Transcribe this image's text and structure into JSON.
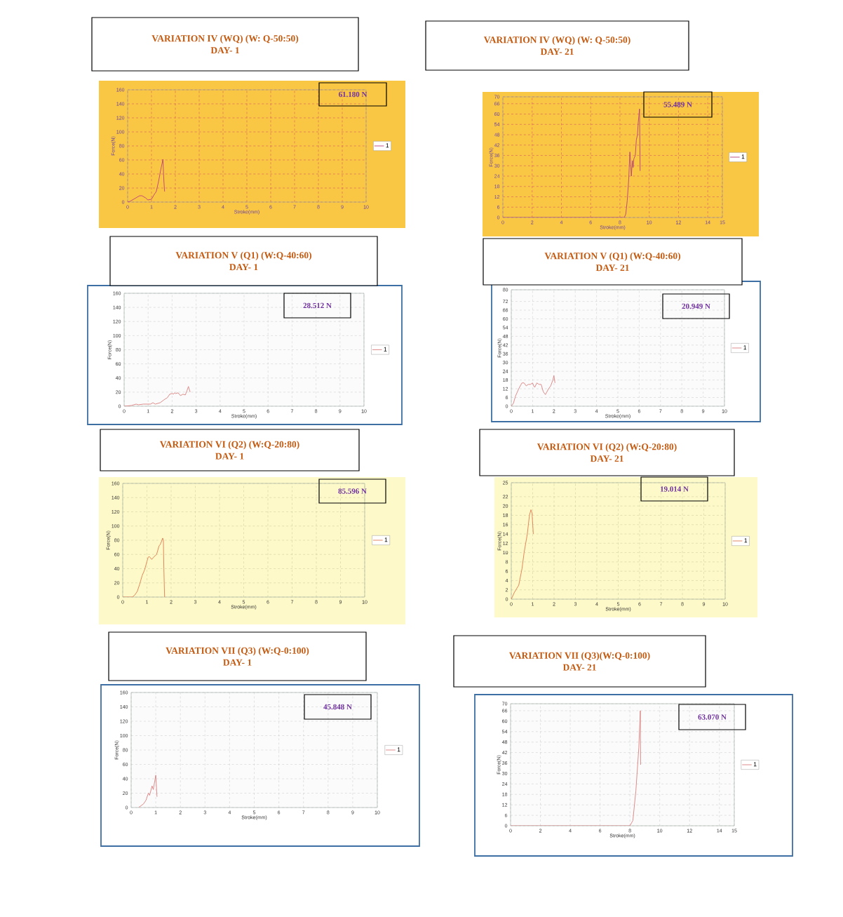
{
  "chart_data": [
    {
      "type": "line",
      "title": "VARIATION IV (WQ) (W: Q-50:50)",
      "subtitle": "DAY- 1",
      "xlabel": "Stroke(mm)",
      "ylabel": "Force(N)",
      "annotations": [
        "61.180 N"
      ],
      "xlim": [
        0,
        10
      ],
      "ylim": [
        0,
        160
      ],
      "xticks": [
        0,
        1,
        2,
        3,
        4,
        5,
        6,
        7,
        8,
        9,
        10
      ],
      "yticks": [
        0,
        20,
        40,
        60,
        80,
        100,
        120,
        140,
        160
      ],
      "grid": true,
      "legend": "right",
      "series": [
        {
          "name": "1",
          "color": "#c0407a",
          "x": [
            0,
            0.1,
            0.3,
            0.5,
            0.6,
            0.75,
            0.85,
            1.0,
            1.1,
            1.2,
            1.3,
            1.4,
            1.48,
            1.5,
            1.52,
            1.55
          ],
          "values": [
            0,
            1,
            5,
            9,
            9,
            6,
            3,
            4,
            10,
            15,
            30,
            48,
            61,
            45,
            30,
            15
          ]
        }
      ]
    },
    {
      "type": "line",
      "title": "VARIATION IV (WQ) (W: Q-50:50)",
      "subtitle": "DAY- 21",
      "xlabel": "Stroke(mm)",
      "ylabel": "Force(N)",
      "annotations": [
        "55.489 N"
      ],
      "xlim": [
        0,
        15
      ],
      "ylim": [
        0,
        70
      ],
      "xticks": [
        0,
        2,
        4,
        6,
        8,
        10,
        12,
        14,
        15
      ],
      "yticks": [
        0,
        6,
        12,
        18,
        24,
        30,
        36,
        42,
        48,
        54,
        60,
        66,
        70
      ],
      "grid": true,
      "legend": "right",
      "series": [
        {
          "name": "1",
          "color": "#b8407a",
          "x": [
            0,
            8.3,
            8.4,
            8.5,
            8.6,
            8.68,
            8.78,
            8.85,
            8.9,
            8.95,
            9.05,
            9.12,
            9.2,
            9.25,
            9.34,
            9.38
          ],
          "values": [
            0,
            0,
            2,
            10,
            22,
            38,
            24,
            33,
            29,
            34,
            36,
            45,
            48,
            55,
            63,
            27
          ]
        }
      ]
    },
    {
      "type": "line",
      "title": "VARIATION V (Q1) (W:Q-40:60)",
      "subtitle": "DAY- 1",
      "xlabel": "Stroke(mm)",
      "ylabel": "Force(N)",
      "annotations": [
        "28.512 N"
      ],
      "xlim": [
        0,
        10
      ],
      "ylim": [
        0,
        160
      ],
      "xticks": [
        0,
        1,
        2,
        3,
        4,
        5,
        6,
        7,
        8,
        9,
        10
      ],
      "yticks": [
        0,
        20,
        40,
        60,
        80,
        100,
        120,
        140,
        160
      ],
      "grid": true,
      "legend": "right",
      "series": [
        {
          "name": "1",
          "color": "#d9807f",
          "x": [
            0,
            0.3,
            0.5,
            0.6,
            0.8,
            1.0,
            1.1,
            1.2,
            1.3,
            1.5,
            1.7,
            1.8,
            1.9,
            2.0,
            2.05,
            2.1,
            2.15,
            2.25,
            2.35,
            2.45,
            2.55,
            2.62,
            2.68,
            2.75
          ],
          "values": [
            0,
            1,
            3,
            2,
            3,
            3,
            3,
            5,
            3,
            5,
            10,
            12,
            17,
            18,
            17,
            19,
            18,
            19,
            15,
            17,
            16,
            22,
            28,
            20
          ]
        }
      ]
    },
    {
      "type": "line",
      "title": "VARIATION V (Q1) (W:Q-40:60)",
      "subtitle": "DAY- 21",
      "xlabel": "Stroke(mm)",
      "ylabel": "Force(N)",
      "annotations": [
        "20.949 N"
      ],
      "xlim": [
        0,
        10
      ],
      "ylim": [
        0,
        80
      ],
      "xticks": [
        0,
        1,
        2,
        3,
        4,
        5,
        6,
        7,
        8,
        9,
        10
      ],
      "yticks": [
        0,
        6,
        12,
        18,
        24,
        30,
        36,
        42,
        48,
        54,
        60,
        66,
        72,
        80
      ],
      "grid": true,
      "legend": "right",
      "series": [
        {
          "name": "1",
          "color": "#d9807f",
          "x": [
            0,
            0.1,
            0.2,
            0.35,
            0.5,
            0.6,
            0.65,
            0.7,
            0.8,
            0.9,
            1.0,
            1.05,
            1.1,
            1.2,
            1.3,
            1.4,
            1.5,
            1.6,
            1.75,
            1.85,
            1.95,
            2.0,
            2.05
          ],
          "values": [
            0,
            2,
            7,
            12,
            16,
            16,
            15,
            14,
            15,
            15,
            16,
            14,
            13,
            16,
            15,
            15,
            10,
            8,
            12,
            14,
            18,
            21,
            16
          ]
        }
      ]
    },
    {
      "type": "line",
      "title": "VARIATION VI (Q2) (W:Q-20:80)",
      "subtitle": "DAY- 1",
      "xlabel": "Stroke(mm)",
      "ylabel": "Force(N)",
      "annotations": [
        "85.596 N"
      ],
      "xlim": [
        0,
        10
      ],
      "ylim": [
        0,
        160
      ],
      "xticks": [
        0,
        1,
        2,
        3,
        4,
        5,
        6,
        7,
        8,
        9,
        10
      ],
      "yticks": [
        0,
        20,
        40,
        60,
        80,
        100,
        120,
        140,
        160
      ],
      "grid": true,
      "legend": "right",
      "series": [
        {
          "name": "1",
          "color": "#e07a50",
          "x": [
            0,
            0.4,
            0.5,
            0.6,
            0.7,
            0.8,
            0.9,
            1.0,
            1.05,
            1.1,
            1.2,
            1.3,
            1.4,
            1.5,
            1.55,
            1.6,
            1.65,
            1.68,
            1.7,
            1.73
          ],
          "values": [
            0,
            0,
            3,
            8,
            18,
            30,
            38,
            50,
            56,
            57,
            53,
            57,
            60,
            72,
            74,
            78,
            83,
            80,
            40,
            0
          ]
        }
      ]
    },
    {
      "type": "line",
      "title": "VARIATION VI (Q2) (W:Q-20:80)",
      "subtitle": "DAY- 21",
      "xlabel": "Stroke(mm)",
      "ylabel": "Force(N)",
      "annotations": [
        "19.014 N"
      ],
      "xlim": [
        0,
        10
      ],
      "ylim": [
        0,
        25
      ],
      "xticks": [
        0,
        1,
        2,
        3,
        4,
        5,
        6,
        7,
        8,
        9,
        10
      ],
      "yticks": [
        0,
        2,
        4,
        6,
        8,
        10,
        12,
        14,
        16,
        18,
        20,
        22,
        25
      ],
      "grid": true,
      "legend": "right",
      "series": [
        {
          "name": "1",
          "color": "#e07a50",
          "x": [
            0,
            0.15,
            0.35,
            0.5,
            0.6,
            0.75,
            0.85,
            0.92,
            0.97,
            1.03
          ],
          "values": [
            0,
            1.5,
            3,
            6.5,
            10,
            14,
            18,
            19.2,
            18.5,
            14
          ]
        }
      ]
    },
    {
      "type": "line",
      "title": "VARIATION VII (Q3) (W:Q-0:100)",
      "subtitle": "DAY- 1",
      "xlabel": "Stroke(mm)",
      "ylabel": "Force(N)",
      "annotations": [
        "45.848 N"
      ],
      "xlim": [
        0,
        10
      ],
      "ylim": [
        0,
        160
      ],
      "xticks": [
        0,
        1,
        2,
        3,
        4,
        5,
        6,
        7,
        8,
        9,
        10
      ],
      "yticks": [
        0,
        20,
        40,
        60,
        80,
        100,
        120,
        140,
        160
      ],
      "grid": true,
      "legend": "right",
      "series": [
        {
          "name": "1",
          "color": "#d9807f",
          "x": [
            0.3,
            0.5,
            0.6,
            0.7,
            0.75,
            0.85,
            0.9,
            1.0,
            1.05
          ],
          "values": [
            0,
            5,
            10,
            20,
            17,
            30,
            25,
            45,
            15
          ]
        }
      ]
    },
    {
      "type": "line",
      "title": "VARIATION VII (Q3)(W:Q-0:100)",
      "subtitle": "DAY- 21",
      "xlabel": "Stroke(mm)",
      "ylabel": "Force(N)",
      "annotations": [
        "63.070 N"
      ],
      "xlim": [
        0,
        15
      ],
      "ylim": [
        0,
        70
      ],
      "xticks": [
        0,
        2,
        4,
        6,
        8,
        10,
        12,
        14,
        15
      ],
      "yticks": [
        0,
        6,
        12,
        18,
        24,
        30,
        36,
        42,
        48,
        54,
        60,
        66,
        70
      ],
      "grid": true,
      "legend": "right",
      "series": [
        {
          "name": "1",
          "color": "#d9807f",
          "x": [
            0,
            8.0,
            8.2,
            8.4,
            8.6,
            8.7,
            8.72
          ],
          "values": [
            0,
            0,
            3,
            20,
            45,
            66,
            35
          ]
        }
      ]
    }
  ]
}
